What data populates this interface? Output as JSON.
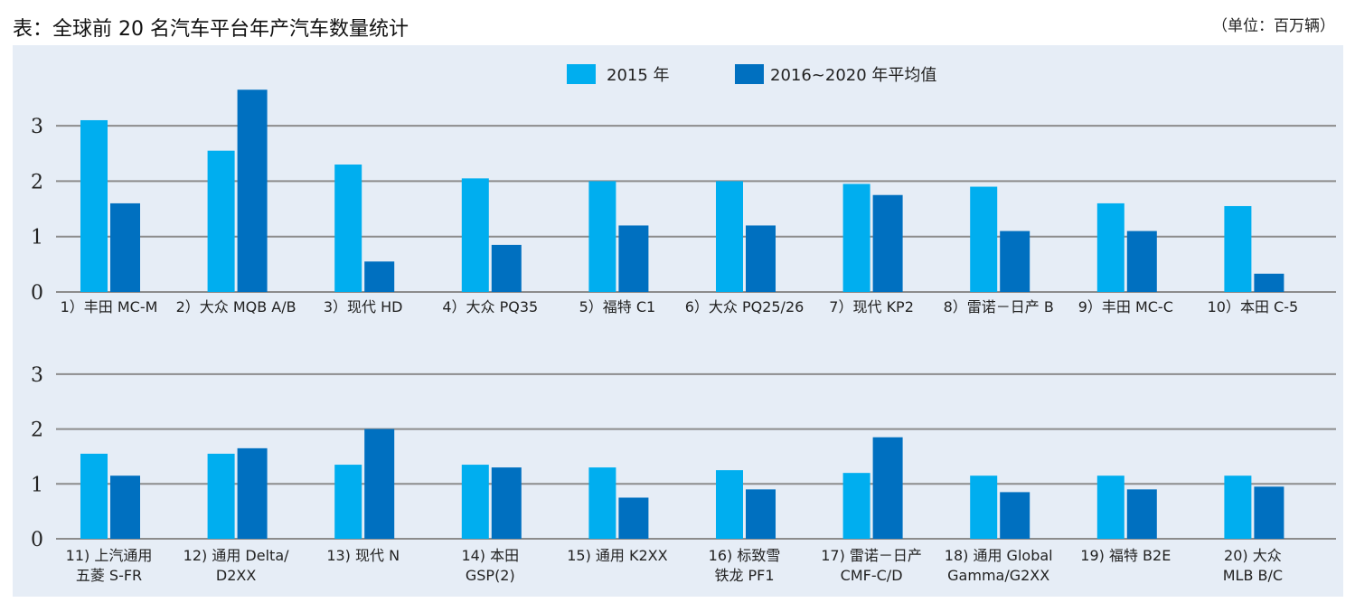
{
  "header": {
    "title": "表：全球前 20 名汽车平台年产汽车数量统计",
    "unit": "（单位：百万辆）"
  },
  "legend": {
    "series_2015": "2015 年",
    "series_avg": "2016~2020 年平均值"
  },
  "colors": {
    "s2015": "#00aeef",
    "avg": "#0070c0",
    "grid": "#8c8c8c",
    "background": "#e6edf6"
  },
  "chart_data": [
    {
      "type": "bar",
      "yticks": [
        0,
        1,
        2,
        3
      ],
      "ylim": [
        0,
        3.8
      ],
      "grid": true,
      "legend_position": "top-center",
      "categories": [
        [
          "1）丰田 MC-M"
        ],
        [
          "2）大众 MQB A/B"
        ],
        [
          "3）现代 HD"
        ],
        [
          "4）大众 PQ35"
        ],
        [
          "5）福特 C1"
        ],
        [
          "6）大众 PQ25/26"
        ],
        [
          "7）现代 KP2"
        ],
        [
          "8）雷诺－日产 B"
        ],
        [
          "9）丰田 MC-C"
        ],
        [
          "10）本田 C-5"
        ]
      ],
      "series": [
        {
          "name": "2015 年",
          "values": [
            3.1,
            2.55,
            2.3,
            2.05,
            2.0,
            2.0,
            1.95,
            1.9,
            1.6,
            1.55
          ]
        },
        {
          "name": "2016~2020 年平均值",
          "values": [
            1.6,
            3.65,
            0.55,
            0.85,
            1.2,
            1.2,
            1.75,
            1.1,
            1.1,
            0.33
          ]
        }
      ]
    },
    {
      "type": "bar",
      "yticks": [
        0,
        1,
        2,
        3
      ],
      "ylim": [
        0,
        3.8
      ],
      "grid": true,
      "categories": [
        [
          "11) 上汽通用",
          "五菱 S-FR"
        ],
        [
          "12) 通用 Delta/",
          "D2XX"
        ],
        [
          "13) 现代 N"
        ],
        [
          "14) 本田",
          "GSP(2)"
        ],
        [
          "15) 通用 K2XX"
        ],
        [
          "16) 标致雪",
          "铁龙 PF1"
        ],
        [
          "17) 雷诺－日产",
          "CMF-C/D"
        ],
        [
          "18) 通用 Global",
          "Gamma/G2XX"
        ],
        [
          "19) 福特 B2E"
        ],
        [
          "20) 大众",
          "MLB B/C"
        ]
      ],
      "series": [
        {
          "name": "2015 年",
          "values": [
            1.55,
            1.55,
            1.35,
            1.35,
            1.3,
            1.25,
            1.2,
            1.15,
            1.15,
            1.15
          ]
        },
        {
          "name": "2016~2020 年平均值",
          "values": [
            1.15,
            1.65,
            2.0,
            1.3,
            0.75,
            0.9,
            1.85,
            0.85,
            0.9,
            0.95
          ]
        }
      ]
    }
  ]
}
